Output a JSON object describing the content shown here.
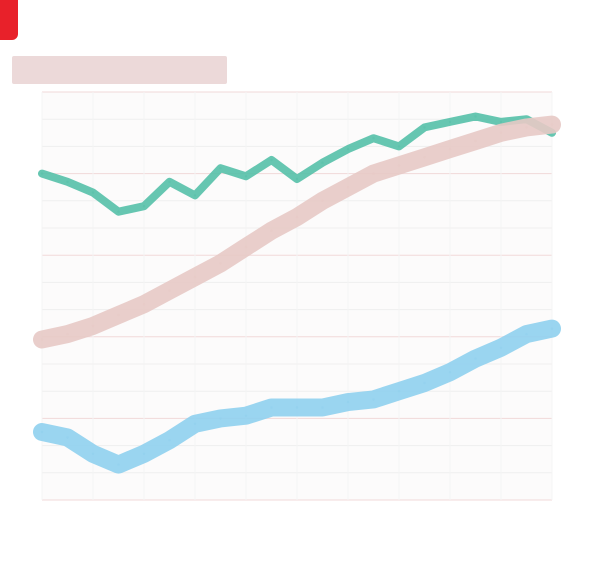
{
  "brand": {
    "label": "",
    "color": "#e8212a"
  },
  "header": {
    "title": ""
  },
  "footer": {
    "note": ""
  },
  "chart_data": {
    "type": "line",
    "title": "",
    "xlabel": "",
    "ylabel": "",
    "x": [
      0,
      1,
      2,
      3,
      4,
      5,
      6,
      7,
      8,
      9,
      10,
      11,
      12,
      13,
      14,
      15,
      16,
      17,
      18,
      19,
      20
    ],
    "ylim": [
      0,
      15
    ],
    "grid": true,
    "legend": "none",
    "series": [
      {
        "name": "",
        "color": "#55c0a8",
        "values": [
          12.0,
          11.7,
          11.3,
          10.6,
          10.8,
          11.7,
          11.2,
          12.2,
          11.9,
          12.5,
          11.8,
          12.4,
          12.9,
          13.3,
          13.0,
          13.7,
          13.9,
          14.1,
          13.9,
          14.0,
          13.5
        ]
      },
      {
        "name": "",
        "color": "#e7c9c5",
        "values": [
          5.9,
          6.1,
          6.4,
          6.8,
          7.2,
          7.7,
          8.2,
          8.7,
          9.3,
          9.9,
          10.4,
          11.0,
          11.5,
          12.0,
          12.3,
          12.6,
          12.9,
          13.2,
          13.5,
          13.7,
          13.8
        ]
      },
      {
        "name": "",
        "color": "#8fd0ee",
        "values": [
          2.5,
          2.3,
          1.7,
          1.3,
          1.7,
          2.2,
          2.8,
          3.0,
          3.1,
          3.4,
          3.4,
          3.4,
          3.6,
          3.7,
          4.0,
          4.3,
          4.7,
          5.2,
          5.6,
          6.1,
          6.3
        ]
      }
    ]
  }
}
